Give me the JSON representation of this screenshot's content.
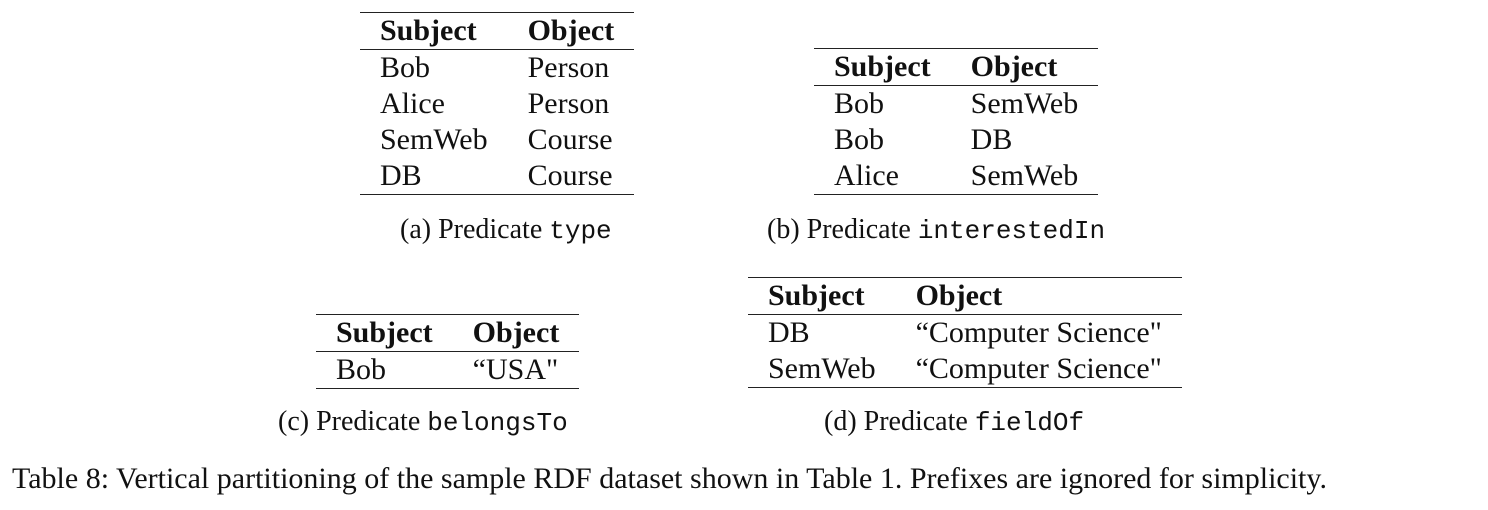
{
  "tables": [
    {
      "headers": [
        "Subject",
        "Object"
      ],
      "rows": [
        [
          "Bob",
          "Person"
        ],
        [
          "Alice",
          "Person"
        ],
        [
          "SemWeb",
          "Course"
        ],
        [
          "DB",
          "Course"
        ]
      ],
      "caption_prefix": "(a) Predicate ",
      "caption_code": "type"
    },
    {
      "headers": [
        "Subject",
        "Object"
      ],
      "rows": [
        [
          "Bob",
          "SemWeb"
        ],
        [
          "Bob",
          "DB"
        ],
        [
          "Alice",
          "SemWeb"
        ]
      ],
      "caption_prefix": "(b) Predicate ",
      "caption_code": "interestedIn"
    },
    {
      "headers": [
        "Subject",
        "Object"
      ],
      "rows": [
        [
          "Bob",
          "“USA\""
        ]
      ],
      "caption_prefix": "(c) Predicate ",
      "caption_code": "belongsTo"
    },
    {
      "headers": [
        "Subject",
        "Object"
      ],
      "rows": [
        [
          "DB",
          "“Computer Science\""
        ],
        [
          "SemWeb",
          "“Computer Science\""
        ]
      ],
      "caption_prefix": "(d) Predicate ",
      "caption_code": "fieldOf"
    }
  ],
  "main_caption": "Table 8: Vertical partitioning of the sample RDF dataset shown in Table 1. Prefixes are ignored for simplicity."
}
